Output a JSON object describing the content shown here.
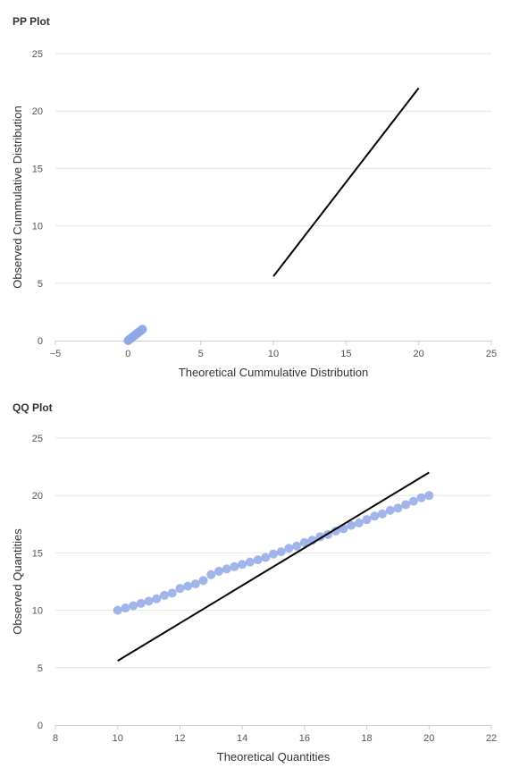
{
  "chart_data": [
    {
      "type": "scatter",
      "title": "PP Plot",
      "xlabel": "Theoretical Cummulative Distribution",
      "ylabel": "Observed Cummulative Distribution",
      "xlim": [
        -5,
        25
      ],
      "ylim": [
        0,
        25
      ],
      "xticks": [
        -5,
        0,
        5,
        10,
        15,
        20,
        25
      ],
      "yticks": [
        0,
        5,
        10,
        15,
        20,
        25
      ],
      "xtick_labels": [
        "−5",
        "0",
        "5",
        "10",
        "15",
        "20",
        "25"
      ],
      "ytick_labels": [
        "0",
        "5",
        "10",
        "15",
        "20",
        "25"
      ],
      "grid": true,
      "series": [
        {
          "kind": "points",
          "color": "#91a8e6",
          "x": [
            0,
            0.05,
            0.1,
            0.15,
            0.2,
            0.25,
            0.3,
            0.35,
            0.4,
            0.45,
            0.5,
            0.55,
            0.6,
            0.65,
            0.7,
            0.75,
            0.8,
            0.85,
            0.9,
            0.95,
            1.0
          ],
          "y": [
            0,
            0.05,
            0.1,
            0.15,
            0.2,
            0.25,
            0.3,
            0.35,
            0.4,
            0.45,
            0.5,
            0.55,
            0.6,
            0.65,
            0.7,
            0.75,
            0.8,
            0.85,
            0.9,
            0.95,
            1.0
          ]
        },
        {
          "kind": "line",
          "color": "#000000",
          "x": [
            10,
            20
          ],
          "y": [
            5.6,
            22
          ]
        }
      ]
    },
    {
      "type": "scatter",
      "title": "QQ Plot",
      "xlabel": "Theoretical Quantities",
      "ylabel": "Observed Quantities",
      "xlim": [
        8,
        22
      ],
      "ylim": [
        0,
        25
      ],
      "xticks": [
        8,
        10,
        12,
        14,
        16,
        18,
        20,
        22
      ],
      "yticks": [
        0,
        5,
        10,
        15,
        20,
        25
      ],
      "xtick_labels": [
        "8",
        "10",
        "12",
        "14",
        "16",
        "18",
        "20",
        "22"
      ],
      "ytick_labels": [
        "0",
        "5",
        "10",
        "15",
        "20",
        "25"
      ],
      "grid": true,
      "series": [
        {
          "kind": "points",
          "color": "#91a8e6",
          "x": [
            10.0,
            10.25,
            10.5,
            10.75,
            11.0,
            11.25,
            11.5,
            11.75,
            12.0,
            12.25,
            12.5,
            12.75,
            13.0,
            13.25,
            13.5,
            13.75,
            14.0,
            14.25,
            14.5,
            14.75,
            15.0,
            15.25,
            15.5,
            15.75,
            16.0,
            16.25,
            16.5,
            16.75,
            17.0,
            17.25,
            17.5,
            17.75,
            18.0,
            18.25,
            18.5,
            18.75,
            19.0,
            19.25,
            19.5,
            19.75,
            20.0
          ],
          "y": [
            10.0,
            10.2,
            10.4,
            10.6,
            10.8,
            11.0,
            11.3,
            11.5,
            11.9,
            12.1,
            12.3,
            12.6,
            13.1,
            13.4,
            13.6,
            13.8,
            14.0,
            14.2,
            14.4,
            14.6,
            14.9,
            15.1,
            15.4,
            15.6,
            15.9,
            16.1,
            16.4,
            16.6,
            16.9,
            17.1,
            17.4,
            17.6,
            17.9,
            18.2,
            18.4,
            18.7,
            18.9,
            19.2,
            19.5,
            19.8,
            20.0
          ]
        },
        {
          "kind": "line",
          "color": "#000000",
          "x": [
            10,
            20
          ],
          "y": [
            5.6,
            22
          ]
        }
      ]
    }
  ]
}
